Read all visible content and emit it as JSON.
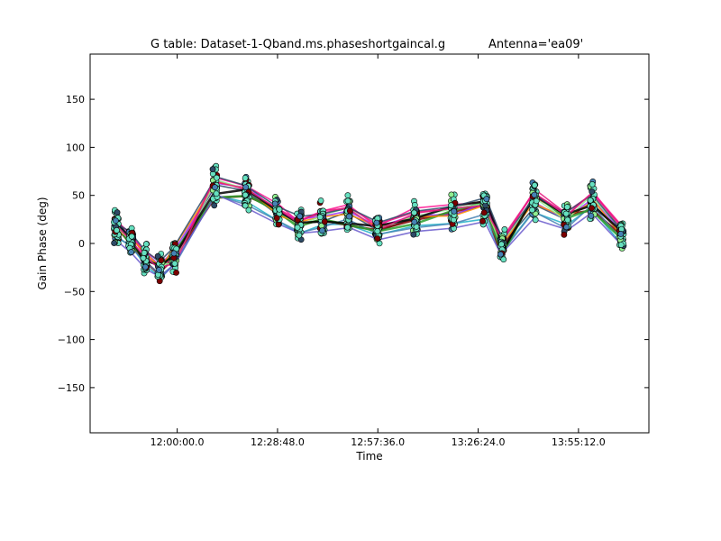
{
  "chart_data": {
    "type": "line",
    "title": "G table: Dataset-1-Qband.ms.phaseshortgaincal.g",
    "title_antenna": "Antenna='ea09'",
    "xlabel": "Time",
    "ylabel": "Gain Phase (deg)",
    "ylim": [
      -197,
      197
    ],
    "xlim_seconds_of_day": [
      41700,
      51325
    ],
    "xtick_values_s": [
      43200,
      44928,
      46656,
      48384,
      50112
    ],
    "xticks": [
      "12:00:00.0",
      "12:28:48.0",
      "12:57:36.0",
      "13:26:24.0",
      "13:55:12.0"
    ],
    "yticks": [
      -150,
      -100,
      -50,
      0,
      50,
      100,
      150
    ],
    "grid": false,
    "legend": "none",
    "series_colors": [
      "#2e4a66",
      "#e5197f",
      "#20b2c8",
      "#7b0000",
      "#9b30ff",
      "#ff1493",
      "#4682b4",
      "#2ca02c",
      "#ff8c00",
      "#90ee90",
      "#6a5acd",
      "#000000"
    ],
    "marker_face": "#66e0c0",
    "series": [
      {
        "x": [
          42150,
          42400,
          42650,
          42900,
          43150,
          43850,
          44400,
          44925,
          45300,
          45700,
          46150,
          46650,
          47300,
          47950,
          48500,
          48800,
          49350,
          49900,
          50350,
          50850
        ],
        "y": [
          15,
          5,
          -15,
          -25,
          -10,
          60,
          55,
          30,
          20,
          25,
          30,
          15,
          25,
          30,
          40,
          0,
          40,
          25,
          45,
          10
        ]
      },
      {
        "x": [
          42150,
          42400,
          42650,
          42900,
          43150,
          43850,
          44400,
          44925,
          45300,
          45700,
          46150,
          46650,
          47300,
          47950,
          48500,
          48800,
          49350,
          49900,
          50350,
          50850
        ],
        "y": [
          25,
          10,
          -10,
          -20,
          -15,
          70,
          60,
          40,
          25,
          35,
          40,
          20,
          35,
          40,
          45,
          5,
          55,
          30,
          55,
          20
        ]
      },
      {
        "x": [
          42150,
          42400,
          42650,
          42900,
          43150,
          43850,
          44400,
          44925,
          45300,
          45700,
          46150,
          46650,
          47300,
          47950,
          48500,
          48800,
          49350,
          49900,
          50350,
          50850
        ],
        "y": [
          10,
          0,
          -20,
          -30,
          -20,
          55,
          45,
          25,
          15,
          20,
          25,
          10,
          20,
          25,
          30,
          -5,
          35,
          20,
          40,
          5
        ]
      },
      {
        "x": [
          42150,
          42400,
          42650,
          42900,
          43150,
          43850,
          44400,
          44925,
          45300,
          45700,
          46150,
          46650,
          47300,
          47950,
          48500,
          48800,
          49350,
          49900,
          50350,
          50850
        ],
        "y": [
          20,
          2,
          -18,
          -28,
          -12,
          50,
          50,
          35,
          18,
          22,
          18,
          15,
          22,
          35,
          42,
          -10,
          50,
          28,
          35,
          8
        ]
      }
    ]
  }
}
